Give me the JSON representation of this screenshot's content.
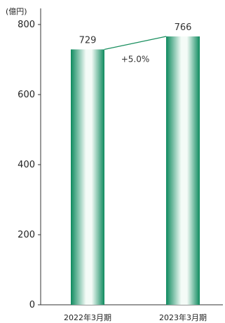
{
  "chart_data": {
    "type": "bar",
    "unit_label": "(億円)",
    "categories": [
      "2022年3月期",
      "2023年3月期"
    ],
    "values": [
      729,
      766
    ],
    "data_labels": [
      "729",
      "766"
    ],
    "ylim": [
      0,
      800
    ],
    "yticks": [
      0,
      200,
      400,
      600,
      800
    ],
    "grid": false,
    "annotation": "+5.0%",
    "colors": {
      "bar_dark": "#0e8a5e",
      "bar_light": "#f4fbf7",
      "connector": "#1a8f5f",
      "axis": "#333333"
    }
  }
}
